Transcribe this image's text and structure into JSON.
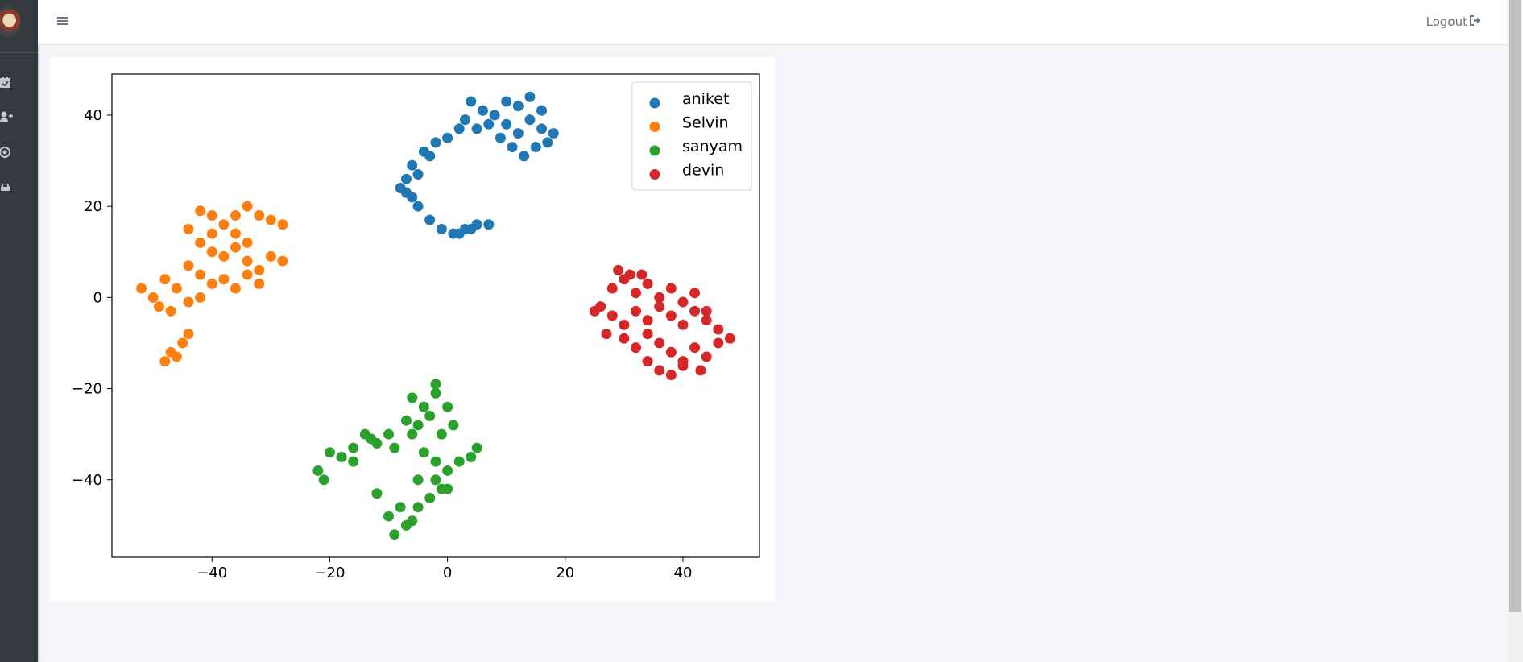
{
  "topbar": {
    "logout_label": "Logout"
  },
  "icons": {
    "hamburger": "bars-icon",
    "logout": "sign-out-icon",
    "sidebar": [
      "calendar-check-icon",
      "user-plus-icon",
      "dot-circle-icon",
      "car-icon"
    ]
  },
  "colors": {
    "sidebar_bg": "#343a40",
    "aniket": "#1f77b4",
    "Selvin": "#ff7f0e",
    "sanyam": "#2ca02c",
    "devin": "#d62728"
  },
  "chart_data": {
    "type": "scatter",
    "xlim": [
      -57,
      53
    ],
    "ylim": [
      -57,
      49
    ],
    "xticks": [
      -40,
      -20,
      0,
      20,
      40
    ],
    "yticks": [
      40,
      20,
      0,
      -20,
      -40
    ],
    "xtick_labels": [
      "−40",
      "−20",
      "0",
      "20",
      "40"
    ],
    "ytick_labels": [
      "40",
      "20",
      "0",
      "−20",
      "−40"
    ],
    "grid": false,
    "legend_position": "top-right",
    "series": [
      {
        "name": "aniket",
        "color": "#1f77b4",
        "points": [
          [
            8,
            40
          ],
          [
            10,
            38
          ],
          [
            12,
            42
          ],
          [
            14,
            39
          ],
          [
            16,
            37
          ],
          [
            18,
            36
          ],
          [
            6,
            41
          ],
          [
            4,
            43
          ],
          [
            3,
            39
          ],
          [
            5,
            37
          ],
          [
            9,
            35
          ],
          [
            11,
            33
          ],
          [
            13,
            31
          ],
          [
            15,
            33
          ],
          [
            17,
            34
          ],
          [
            12,
            36
          ],
          [
            10,
            43
          ],
          [
            14,
            44
          ],
          [
            16,
            41
          ],
          [
            7,
            38
          ],
          [
            2,
            37
          ],
          [
            0,
            35
          ],
          [
            -2,
            34
          ],
          [
            -4,
            32
          ],
          [
            -6,
            29
          ],
          [
            -7,
            26
          ],
          [
            -8,
            24
          ],
          [
            -6,
            22
          ],
          [
            -5,
            20
          ],
          [
            -3,
            17
          ],
          [
            -1,
            15
          ],
          [
            1,
            14
          ],
          [
            3,
            15
          ],
          [
            5,
            16
          ],
          [
            7,
            16
          ],
          [
            -3,
            31
          ],
          [
            -5,
            27
          ],
          [
            -7,
            23
          ],
          [
            2,
            14
          ],
          [
            4,
            15
          ]
        ]
      },
      {
        "name": "Selvin",
        "color": "#ff7f0e",
        "points": [
          [
            -42,
            19
          ],
          [
            -40,
            18
          ],
          [
            -38,
            16
          ],
          [
            -36,
            18
          ],
          [
            -34,
            20
          ],
          [
            -32,
            18
          ],
          [
            -30,
            17
          ],
          [
            -28,
            16
          ],
          [
            -44,
            15
          ],
          [
            -42,
            12
          ],
          [
            -40,
            10
          ],
          [
            -38,
            9
          ],
          [
            -36,
            11
          ],
          [
            -34,
            8
          ],
          [
            -32,
            6
          ],
          [
            -30,
            9
          ],
          [
            -28,
            8
          ],
          [
            -44,
            7
          ],
          [
            -42,
            5
          ],
          [
            -40,
            3
          ],
          [
            -38,
            4
          ],
          [
            -36,
            2
          ],
          [
            -34,
            5
          ],
          [
            -32,
            3
          ],
          [
            -42,
            0
          ],
          [
            -44,
            -1
          ],
          [
            -46,
            2
          ],
          [
            -48,
            4
          ],
          [
            -50,
            0
          ],
          [
            -52,
            2
          ],
          [
            -49,
            -2
          ],
          [
            -47,
            -3
          ],
          [
            -45,
            -10
          ],
          [
            -47,
            -12
          ],
          [
            -48,
            -14
          ],
          [
            -46,
            -13
          ],
          [
            -44,
            -8
          ],
          [
            -36,
            14
          ],
          [
            -34,
            12
          ],
          [
            -40,
            14
          ]
        ]
      },
      {
        "name": "sanyam",
        "color": "#2ca02c",
        "points": [
          [
            -6,
            -22
          ],
          [
            -4,
            -24
          ],
          [
            -2,
            -21
          ],
          [
            0,
            -24
          ],
          [
            1,
            -28
          ],
          [
            -1,
            -30
          ],
          [
            -3,
            -26
          ],
          [
            -5,
            -28
          ],
          [
            -2,
            -19
          ],
          [
            -7,
            -27
          ],
          [
            -10,
            -30
          ],
          [
            -12,
            -32
          ],
          [
            -14,
            -30
          ],
          [
            -16,
            -33
          ],
          [
            -18,
            -35
          ],
          [
            -20,
            -34
          ],
          [
            -22,
            -38
          ],
          [
            -21,
            -40
          ],
          [
            -16,
            -36
          ],
          [
            -13,
            -31
          ],
          [
            -9,
            -33
          ],
          [
            -6,
            -30
          ],
          [
            -4,
            -34
          ],
          [
            -2,
            -36
          ],
          [
            0,
            -38
          ],
          [
            -1,
            -42
          ],
          [
            -3,
            -44
          ],
          [
            -5,
            -40
          ],
          [
            -2,
            -40
          ],
          [
            0,
            -42
          ],
          [
            5,
            -33
          ],
          [
            4,
            -35
          ],
          [
            -7,
            -50
          ],
          [
            -9,
            -52
          ],
          [
            -10,
            -48
          ],
          [
            -8,
            -46
          ],
          [
            -6,
            -49
          ],
          [
            -12,
            -43
          ],
          [
            -5,
            -46
          ],
          [
            2,
            -36
          ]
        ]
      },
      {
        "name": "devin",
        "color": "#d62728",
        "points": [
          [
            26,
            -2
          ],
          [
            28,
            -4
          ],
          [
            30,
            -6
          ],
          [
            32,
            -3
          ],
          [
            34,
            -5
          ],
          [
            36,
            -2
          ],
          [
            38,
            -4
          ],
          [
            40,
            -6
          ],
          [
            42,
            -3
          ],
          [
            44,
            -5
          ],
          [
            46,
            -7
          ],
          [
            28,
            2
          ],
          [
            30,
            4
          ],
          [
            32,
            1
          ],
          [
            34,
            3
          ],
          [
            36,
            0
          ],
          [
            38,
            2
          ],
          [
            40,
            -1
          ],
          [
            42,
            1
          ],
          [
            44,
            -3
          ],
          [
            30,
            -9
          ],
          [
            32,
            -11
          ],
          [
            34,
            -8
          ],
          [
            36,
            -10
          ],
          [
            38,
            -12
          ],
          [
            40,
            -14
          ],
          [
            42,
            -11
          ],
          [
            44,
            -13
          ],
          [
            46,
            -10
          ],
          [
            48,
            -9
          ],
          [
            34,
            -14
          ],
          [
            36,
            -16
          ],
          [
            38,
            -17
          ],
          [
            40,
            -15
          ],
          [
            29,
            6
          ],
          [
            31,
            5
          ],
          [
            33,
            5
          ],
          [
            25,
            -3
          ],
          [
            27,
            -8
          ],
          [
            43,
            -16
          ]
        ]
      }
    ]
  }
}
